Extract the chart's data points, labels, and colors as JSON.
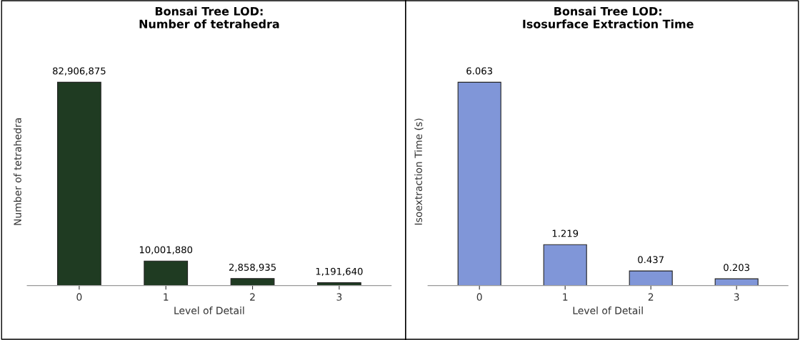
{
  "chart_data": [
    {
      "type": "bar",
      "title": "Bonsai Tree LOD:\nNumber of tetrahedra",
      "xlabel": "Level of Detail",
      "ylabel": "Number of tetrahedra",
      "categories": [
        "0",
        "1",
        "2",
        "3"
      ],
      "values": [
        82906875,
        10001880,
        2858935,
        1191640
      ],
      "value_labels": [
        "82,906,875",
        "10,001,880",
        "2,858,935",
        "1,191,640"
      ],
      "color": "#1f3b22",
      "grid": false,
      "legend": false
    },
    {
      "type": "bar",
      "title": "Bonsai Tree LOD:\nIsosurface Extraction Time",
      "xlabel": "Level of Detail",
      "ylabel": "Isoextraction Time (s)",
      "categories": [
        "0",
        "1",
        "2",
        "3"
      ],
      "values": [
        6.063,
        1.219,
        0.437,
        0.203
      ],
      "data_labels": true,
      "color": "#8096d8",
      "grid": false,
      "legend": false
    }
  ]
}
